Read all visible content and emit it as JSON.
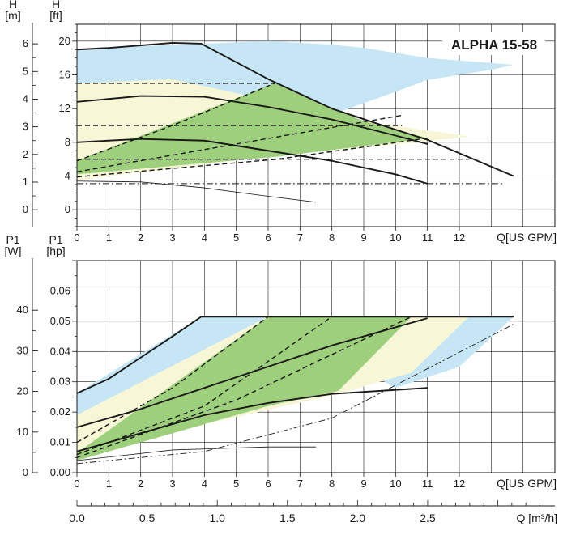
{
  "title": "ALPHA 15-58",
  "colors": {
    "blue": "#c6e6f6",
    "yellow": "#f7f6d6",
    "green": "#9dcf7c",
    "line": "#1a1a1a",
    "grid": "#1a1a1a"
  },
  "chart_data": [
    {
      "type": "line",
      "name": "head-curve",
      "title": "ALPHA 15-58",
      "xlabel": "Q[US GPM]",
      "ylabel_left": "H [m]",
      "ylabel_right": "H [ft]",
      "xlim": [
        0,
        15
      ],
      "ylim_ft": [
        -2,
        22
      ],
      "x_ticks": [
        0,
        1,
        2,
        3,
        4,
        5,
        6,
        7,
        8,
        9,
        10,
        11,
        12
      ],
      "y_ticks_ft": [
        0,
        4,
        8,
        12,
        16,
        20
      ],
      "y_ticks_m": [
        0,
        1,
        2,
        3,
        4,
        5,
        6
      ],
      "areas": [
        {
          "fill": "blue",
          "x": [
            0,
            1,
            2,
            3,
            3.9,
            4.0,
            6.0,
            8.0,
            10.0,
            11.0,
            12.0,
            13.0,
            13.7,
            11.0,
            10.0,
            9.0,
            8.0,
            6.0,
            4.0,
            2.0,
            0
          ],
          "y": [
            4.2,
            4.8,
            5.4,
            6.1,
            6.7,
            6.8,
            8.9,
            11.3,
            14.0,
            15.4,
            16.0,
            16.6,
            17.2,
            18.0,
            18.6,
            19.2,
            19.6,
            20.0,
            19.7,
            19.4,
            19.0
          ]
        },
        {
          "fill": "yellow",
          "x": [
            0,
            6.2,
            10.2,
            12.3,
            9.0,
            6.0,
            3.0,
            0
          ],
          "y": [
            3.5,
            6.4,
            7.8,
            8.7,
            10.5,
            13.0,
            15.5,
            15.0
          ]
        },
        {
          "fill": "green",
          "x": [
            0,
            6.3,
            11.0,
            9.0,
            6.2,
            0
          ],
          "y": [
            4.2,
            6.3,
            8.5,
            10.5,
            15.0,
            5.8
          ]
        }
      ],
      "series": [
        {
          "style": "thick",
          "x": [
            0,
            1,
            2,
            3,
            3.9,
            6.0,
            8.0,
            10.0,
            11.0,
            13.7
          ],
          "y": [
            19.0,
            19.2,
            19.5,
            19.8,
            19.7,
            15.5,
            12.0,
            9.5,
            8.3,
            4.0
          ]
        },
        {
          "style": "thick",
          "x": [
            0,
            2,
            4,
            6,
            8,
            10,
            11
          ],
          "y": [
            12.8,
            13.5,
            13.4,
            12.2,
            10.7,
            8.8,
            7.8
          ]
        },
        {
          "style": "thick",
          "x": [
            0,
            2,
            4,
            6,
            8,
            10,
            11.0
          ],
          "y": [
            8.0,
            8.4,
            8.2,
            7.0,
            5.8,
            4.2,
            3.1
          ]
        },
        {
          "style": "dash",
          "x": [
            0,
            6.2
          ],
          "y": [
            15.0,
            15.0
          ]
        },
        {
          "style": "dash",
          "x": [
            0,
            10.2
          ],
          "y": [
            10.0,
            10.0
          ]
        },
        {
          "style": "dash",
          "x": [
            0,
            12.3
          ],
          "y": [
            6.0,
            6.0
          ]
        },
        {
          "style": "dash",
          "x": [
            0,
            3,
            6.2
          ],
          "y": [
            5.8,
            10.0,
            15.0
          ]
        },
        {
          "style": "dash",
          "x": [
            0,
            5,
            10.2
          ],
          "y": [
            4.5,
            7.8,
            11.2
          ]
        },
        {
          "style": "dash",
          "x": [
            0,
            6.3,
            11.0
          ],
          "y": [
            3.9,
            6.0,
            8.5
          ]
        },
        {
          "style": "thin",
          "x": [
            0,
            2,
            4,
            6,
            7.5
          ],
          "y": [
            3.4,
            3.3,
            2.6,
            1.6,
            0.9
          ]
        },
        {
          "style": "dashdot",
          "x": [
            0,
            13.4
          ],
          "y": [
            3.1,
            3.1
          ]
        }
      ]
    },
    {
      "type": "line",
      "name": "power-curve",
      "xlabel": "Q[US GPM]",
      "ylabel_left": "P1 [W]",
      "ylabel_right": "P1 [hp]",
      "xlim": [
        0,
        15
      ],
      "ylim_hp": [
        0,
        0.07
      ],
      "x_ticks": [
        0,
        1,
        2,
        3,
        4,
        5,
        6,
        7,
        8,
        9,
        10,
        11,
        12
      ],
      "y_ticks_hp": [
        0.0,
        0.01,
        0.02,
        0.03,
        0.04,
        0.05,
        0.06
      ],
      "y_ticks_w": [
        0,
        10,
        20,
        30,
        40
      ],
      "q_m3h_axis": {
        "label": "Q [m³/h]",
        "ticks": [
          "0.0",
          "0.5",
          "1.0",
          "1.5",
          "2.0",
          "2.5"
        ],
        "values_m3h": [
          0,
          0.5,
          1.0,
          1.5,
          2.0,
          2.5
        ]
      },
      "areas": [
        {
          "fill": "blue",
          "x": [
            0,
            3.9,
            13.7,
            12.0,
            10.0,
            6.0,
            0
          ],
          "y": [
            0.0262,
            0.0515,
            0.0515,
            0.035,
            0.028,
            0.0515,
            0.019
          ]
        },
        {
          "fill": "yellow",
          "x": [
            0,
            6.0,
            12.3,
            10.5,
            8.2,
            0
          ],
          "y": [
            0.019,
            0.0515,
            0.0515,
            0.033,
            0.026,
            0.0065
          ]
        },
        {
          "fill": "green",
          "x": [
            0,
            6.0,
            10.5,
            8.2,
            6.0,
            0
          ],
          "y": [
            0.0065,
            0.0515,
            0.0515,
            0.027,
            0.022,
            0.004
          ]
        }
      ],
      "series": [
        {
          "style": "thick",
          "x": [
            0,
            1,
            2,
            3,
            3.9,
            13.7
          ],
          "y": [
            0.0262,
            0.031,
            0.038,
            0.045,
            0.0515,
            0.0515
          ]
        },
        {
          "style": "thick",
          "x": [
            0,
            2,
            4,
            6,
            8,
            10,
            11
          ],
          "y": [
            0.015,
            0.021,
            0.028,
            0.035,
            0.042,
            0.048,
            0.051
          ]
        },
        {
          "style": "thick",
          "x": [
            0,
            2,
            4,
            6,
            8,
            11
          ],
          "y": [
            0.007,
            0.013,
            0.019,
            0.023,
            0.026,
            0.028
          ]
        },
        {
          "style": "dash",
          "x": [
            0,
            3,
            6.0
          ],
          "y": [
            0.01,
            0.028,
            0.0515
          ]
        },
        {
          "style": "dash",
          "x": [
            0,
            4,
            8.0
          ],
          "y": [
            0.006,
            0.022,
            0.0515
          ]
        },
        {
          "style": "dash",
          "x": [
            0,
            5,
            10.5
          ],
          "y": [
            0.005,
            0.024,
            0.0515
          ]
        },
        {
          "style": "thin",
          "x": [
            0,
            3,
            6,
            7.5
          ],
          "y": [
            0.004,
            0.0075,
            0.0085,
            0.0085
          ]
        },
        {
          "style": "dashdot",
          "x": [
            0,
            4,
            8,
            13.7
          ],
          "y": [
            0.003,
            0.007,
            0.018,
            0.049
          ]
        }
      ]
    }
  ]
}
